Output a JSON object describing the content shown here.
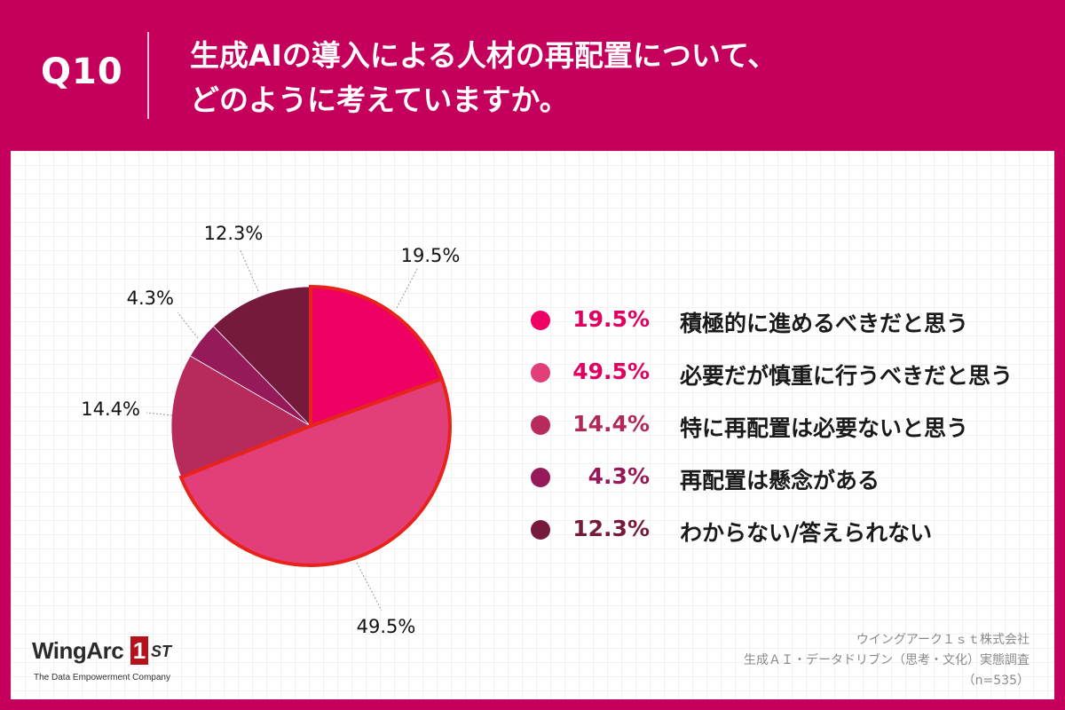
{
  "question": {
    "number": "Q10",
    "title_line1": "生成AIの導入による人材の再配置について、",
    "title_line2": "どのように考えていますか。"
  },
  "chart_data": {
    "type": "pie",
    "title": "生成AIの導入による人材の再配置について、どのように考えていますか。",
    "categories": [
      "積極的に進めるべきだと思う",
      "必要だが慎重に行うべきだと思う",
      "特に再配置は必要ないと思う",
      "再配置は懸念がある",
      "わからない/答えられない"
    ],
    "values": [
      19.5,
      49.5,
      14.4,
      4.3,
      12.3
    ],
    "value_labels": [
      "19.5%",
      "49.5%",
      "14.4%",
      "4.3%",
      "12.3%"
    ],
    "colors": [
      "#ee0064",
      "#e23f7a",
      "#b62b5c",
      "#96195a",
      "#751a3c"
    ],
    "highlight_color": "#e8231b",
    "highlighted": [
      true,
      true,
      false,
      false,
      false
    ],
    "legend_position": "right"
  },
  "legend": {
    "items": [
      {
        "pct": "19.5%",
        "label": "積極的に進めるべきだと思う",
        "color": "#ee0064",
        "text_color": "#e0005f"
      },
      {
        "pct": "49.5%",
        "label": "必要だが慎重に行うべきだと思う",
        "color": "#e23f7a",
        "text_color": "#e0005f"
      },
      {
        "pct": "14.4%",
        "label": "特に再配置は必要ないと思う",
        "color": "#b62b5c",
        "text_color": "#b0285a"
      },
      {
        "pct": "4.3%",
        "label": "再配置は懸念がある",
        "color": "#96195a",
        "text_color": "#96195a"
      },
      {
        "pct": "12.3%",
        "label": "わからない/答えられない",
        "color": "#751a3c",
        "text_color": "#751a3c"
      }
    ]
  },
  "brand": {
    "wordmark": "WingArc",
    "mark_digit": "1",
    "mark_suffix": "ST",
    "tagline": "The Data Empowerment Company"
  },
  "source": {
    "company": "ウイングアーク１ｓｔ株式会社",
    "survey": "生成ＡＩ・データドリブン（思考・文化）実態調査",
    "sample": "（n=535）"
  }
}
